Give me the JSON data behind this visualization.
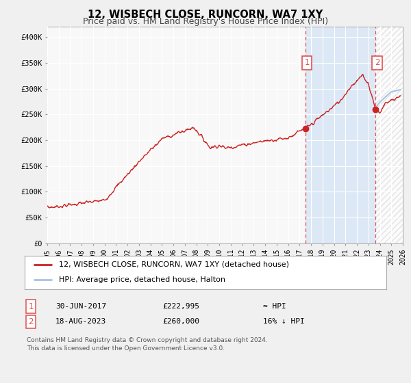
{
  "title": "12, WISBECH CLOSE, RUNCORN, WA7 1XY",
  "subtitle": "Price paid vs. HM Land Registry's House Price Index (HPI)",
  "ylabel_ticks": [
    "£0",
    "£50K",
    "£100K",
    "£150K",
    "£200K",
    "£250K",
    "£300K",
    "£350K",
    "£400K"
  ],
  "ytick_values": [
    0,
    50000,
    100000,
    150000,
    200000,
    250000,
    300000,
    350000,
    400000
  ],
  "ylim": [
    0,
    420000
  ],
  "xlim_start": 1995.0,
  "xlim_end": 2026.0,
  "xticks": [
    1995,
    1996,
    1997,
    1998,
    1999,
    2000,
    2001,
    2002,
    2003,
    2004,
    2005,
    2006,
    2007,
    2008,
    2009,
    2010,
    2011,
    2012,
    2013,
    2014,
    2015,
    2016,
    2017,
    2018,
    2019,
    2020,
    2021,
    2022,
    2023,
    2024,
    2025,
    2026
  ],
  "hpi_color": "#a8c4e0",
  "price_color": "#cc2222",
  "dashed_color": "#e05050",
  "bg_color": "#f0f0f0",
  "plot_bg": "#f8f8f8",
  "shade_color": "#dce8f5",
  "hatch_color": "#cccccc",
  "grid_color": "#ffffff",
  "point1_x": 2017.5,
  "point1_y": 222995,
  "point2_x": 2023.62,
  "point2_y": 260000,
  "legend1_label": "12, WISBECH CLOSE, RUNCORN, WA7 1XY (detached house)",
  "legend2_label": "HPI: Average price, detached house, Halton",
  "table_row1": [
    "1",
    "30-JUN-2017",
    "£222,995",
    "≈ HPI"
  ],
  "table_row2": [
    "2",
    "18-AUG-2023",
    "£260,000",
    "16% ↓ HPI"
  ],
  "footnote1": "Contains HM Land Registry data © Crown copyright and database right 2024.",
  "footnote2": "This data is licensed under the Open Government Licence v3.0.",
  "title_fontsize": 10.5,
  "subtitle_fontsize": 9,
  "tick_fontsize": 7.5,
  "legend_fontsize": 8,
  "table_fontsize": 8,
  "footnote_fontsize": 6.5
}
